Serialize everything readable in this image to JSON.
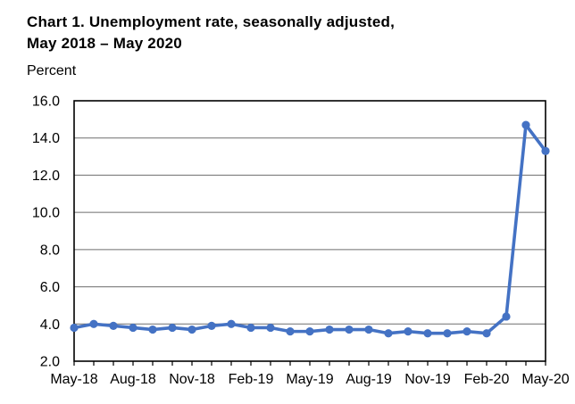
{
  "header": {
    "title_line1": "Chart 1. Unemployment rate, seasonally adjusted,",
    "title_line2": "May 2018 – May 2020",
    "unit_label": "Percent"
  },
  "chart_data": {
    "type": "line",
    "title": "Chart 1. Unemployment rate, seasonally adjusted, May 2018 – May 2020",
    "ylabel": "Percent",
    "xlabel": "",
    "categories": [
      "May-18",
      "Jun-18",
      "Jul-18",
      "Aug-18",
      "Sep-18",
      "Oct-18",
      "Nov-18",
      "Dec-18",
      "Jan-19",
      "Feb-19",
      "Mar-19",
      "Apr-19",
      "May-19",
      "Jun-19",
      "Jul-19",
      "Aug-19",
      "Sep-19",
      "Oct-19",
      "Nov-19",
      "Dec-19",
      "Jan-20",
      "Feb-20",
      "Mar-20",
      "Apr-20",
      "May-20"
    ],
    "series": [
      {
        "name": "Unemployment rate (percent)",
        "values": [
          3.8,
          4.0,
          3.9,
          3.8,
          3.7,
          3.8,
          3.7,
          3.9,
          4.0,
          3.8,
          3.8,
          3.6,
          3.6,
          3.7,
          3.7,
          3.7,
          3.5,
          3.6,
          3.5,
          3.5,
          3.6,
          3.5,
          4.4,
          14.7,
          13.3
        ]
      }
    ],
    "x_tick_labels_shown": [
      "May-18",
      "Aug-18",
      "Nov-18",
      "Feb-19",
      "May-19",
      "Aug-19",
      "Nov-19",
      "Feb-20",
      "May-20"
    ],
    "x_tick_label_every": 3,
    "ylim": [
      2.0,
      16.0
    ],
    "ytick_step": 2.0,
    "ytick_labels": [
      "2.0",
      "4.0",
      "6.0",
      "8.0",
      "10.0",
      "12.0",
      "14.0",
      "16.0"
    ],
    "grid": true,
    "legend": "none",
    "colors": {
      "line": "#4472C4",
      "marker": "#4472C4",
      "gridline": "#6e6e6e",
      "axis": "#000000",
      "background": "#ffffff",
      "text": "#000000"
    }
  }
}
